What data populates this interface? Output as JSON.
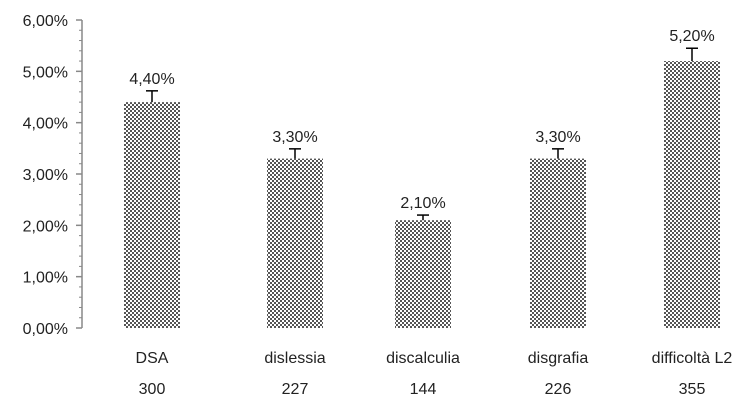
{
  "chart_data": {
    "type": "bar",
    "title": "",
    "xlabel": "",
    "ylabel": "",
    "ylim": [
      0,
      6
    ],
    "y_ticks": [
      "0,00%",
      "1,00%",
      "2,00%",
      "3,00%",
      "4,00%",
      "5,00%",
      "6,00%"
    ],
    "categories": [
      "DSA",
      "dislessia",
      "discalculia",
      "disgrafia",
      "difficoltà L2"
    ],
    "values": [
      4.4,
      3.3,
      2.1,
      3.3,
      5.2
    ],
    "value_labels": [
      "4,40%",
      "3,30%",
      "2,10%",
      "3,30%",
      "5,20%"
    ],
    "error_upper": [
      0.22,
      0.19,
      0.1,
      0.19,
      0.25
    ],
    "counts": [
      "300",
      "227",
      "144",
      "226",
      "355"
    ],
    "bar_pattern": "checkered-gray",
    "colors": {
      "bar_dark": "#555555",
      "bar_light": "#ffffff",
      "axis": "#888888",
      "text": "#222222"
    },
    "grid": false,
    "legend": "none"
  }
}
